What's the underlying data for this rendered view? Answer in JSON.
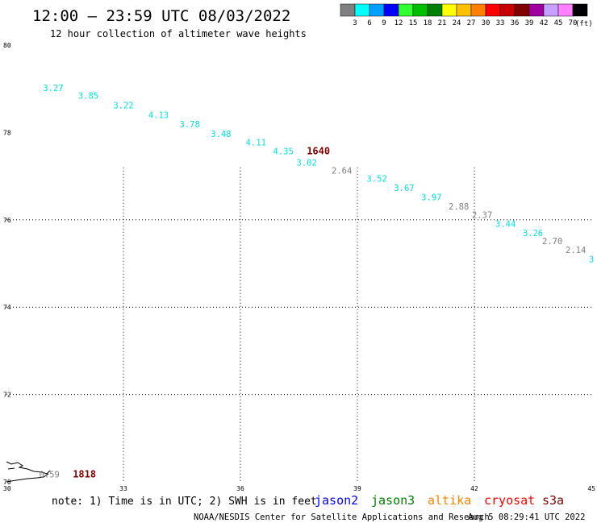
{
  "header": {
    "title": "12:00 – 23:59 UTC 08/03/2022",
    "subtitle": "12 hour collection of altimeter wave heights"
  },
  "legend": {
    "unit": "(ft)",
    "bins": [
      {
        "label": "3",
        "color": "#808080"
      },
      {
        "label": "6",
        "color": "#00ffff"
      },
      {
        "label": "9",
        "color": "#00a0ff"
      },
      {
        "label": "12",
        "color": "#0000ff"
      },
      {
        "label": "15",
        "color": "#30ff30"
      },
      {
        "label": "18",
        "color": "#00c000"
      },
      {
        "label": "21",
        "color": "#008000"
      },
      {
        "label": "24",
        "color": "#ffff00"
      },
      {
        "label": "27",
        "color": "#ffc000"
      },
      {
        "label": "30",
        "color": "#ff8000"
      },
      {
        "label": "33",
        "color": "#ff0000"
      },
      {
        "label": "36",
        "color": "#c80000"
      },
      {
        "label": "39",
        "color": "#800000"
      },
      {
        "label": "42",
        "color": "#a000a0"
      },
      {
        "label": "45",
        "color": "#c8a0ff"
      },
      {
        "label": "70",
        "color": "#ff80ff"
      },
      {
        "label": "",
        "color": "#000000"
      }
    ]
  },
  "map": {
    "lat_labels": [
      "80",
      "78",
      "76",
      "74",
      "72",
      "70"
    ],
    "lon_labels": [
      "30",
      "33",
      "36",
      "39",
      "42",
      "45"
    ],
    "lat_range": [
      70,
      80
    ],
    "lon_range": [
      30,
      45
    ],
    "gridlines": "dotted at labeled latitudes and longitudes"
  },
  "wave_heights": [
    {
      "text": "3.27",
      "lon": 31.2,
      "lat": 78.95,
      "color": "#00e0e0"
    },
    {
      "text": "3.85",
      "lon": 32.1,
      "lat": 78.77,
      "color": "#00e0e0"
    },
    {
      "text": "3.22",
      "lon": 33.0,
      "lat": 78.55,
      "color": "#00e0e0"
    },
    {
      "text": "4.13",
      "lon": 33.9,
      "lat": 78.33,
      "color": "#00e0e0"
    },
    {
      "text": "3.78",
      "lon": 34.7,
      "lat": 78.12,
      "color": "#00e0e0"
    },
    {
      "text": "3.48",
      "lon": 35.5,
      "lat": 77.9,
      "color": "#00e0e0"
    },
    {
      "text": "4.11",
      "lon": 36.4,
      "lat": 77.7,
      "color": "#00e0e0"
    },
    {
      "text": "4.35",
      "lon": 37.1,
      "lat": 77.5,
      "color": "#00e0e0"
    },
    {
      "text": "3.02",
      "lon": 37.7,
      "lat": 77.24,
      "color": "#00e0e0"
    },
    {
      "text": "2.64",
      "lon": 38.6,
      "lat": 77.06,
      "color": "#808080"
    },
    {
      "text": "3.52",
      "lon": 39.5,
      "lat": 76.87,
      "color": "#00e0e0"
    },
    {
      "text": "3.67",
      "lon": 40.2,
      "lat": 76.66,
      "color": "#00e0e0"
    },
    {
      "text": "3.97",
      "lon": 40.9,
      "lat": 76.45,
      "color": "#00e0e0"
    },
    {
      "text": "2.88",
      "lon": 41.6,
      "lat": 76.24,
      "color": "#808080"
    },
    {
      "text": "2.37",
      "lon": 42.2,
      "lat": 76.04,
      "color": "#808080"
    },
    {
      "text": "3.44",
      "lon": 42.8,
      "lat": 75.84,
      "color": "#00e0e0"
    },
    {
      "text": "3.26",
      "lon": 43.5,
      "lat": 75.63,
      "color": "#00e0e0"
    },
    {
      "text": "2.70",
      "lon": 44.0,
      "lat": 75.44,
      "color": "#808080"
    },
    {
      "text": "2.14",
      "lon": 44.6,
      "lat": 75.24,
      "color": "#808080"
    },
    {
      "text": "3",
      "lon": 45.0,
      "lat": 75.03,
      "color": "#00e0e0"
    },
    {
      "text": "0.59",
      "lon": 31.1,
      "lat": 70.1,
      "color": "#808080"
    }
  ],
  "pass_times": [
    {
      "text": "1640",
      "lon": 38.0,
      "lat": 77.5,
      "color": "#800000"
    },
    {
      "text": "1818",
      "lon": 32.0,
      "lat": 70.1,
      "color": "#800000"
    }
  ],
  "footer": {
    "note": "note: 1) Time is in UTC; 2) SWH is in feet",
    "satellites": [
      {
        "name": "jason2",
        "color": "#0000ff"
      },
      {
        "name": "jason3",
        "color": "#008000"
      },
      {
        "name": "altika",
        "color": "#ff8000"
      },
      {
        "name": "cryosat",
        "color": "#ff0000"
      },
      {
        "name": "s3a",
        "color": "#800000"
      }
    ],
    "credit": "NOAA/NESDIS Center for Satellite Applications and Research",
    "timestamp": "Aug  5 08:29:41 UTC 2022"
  }
}
